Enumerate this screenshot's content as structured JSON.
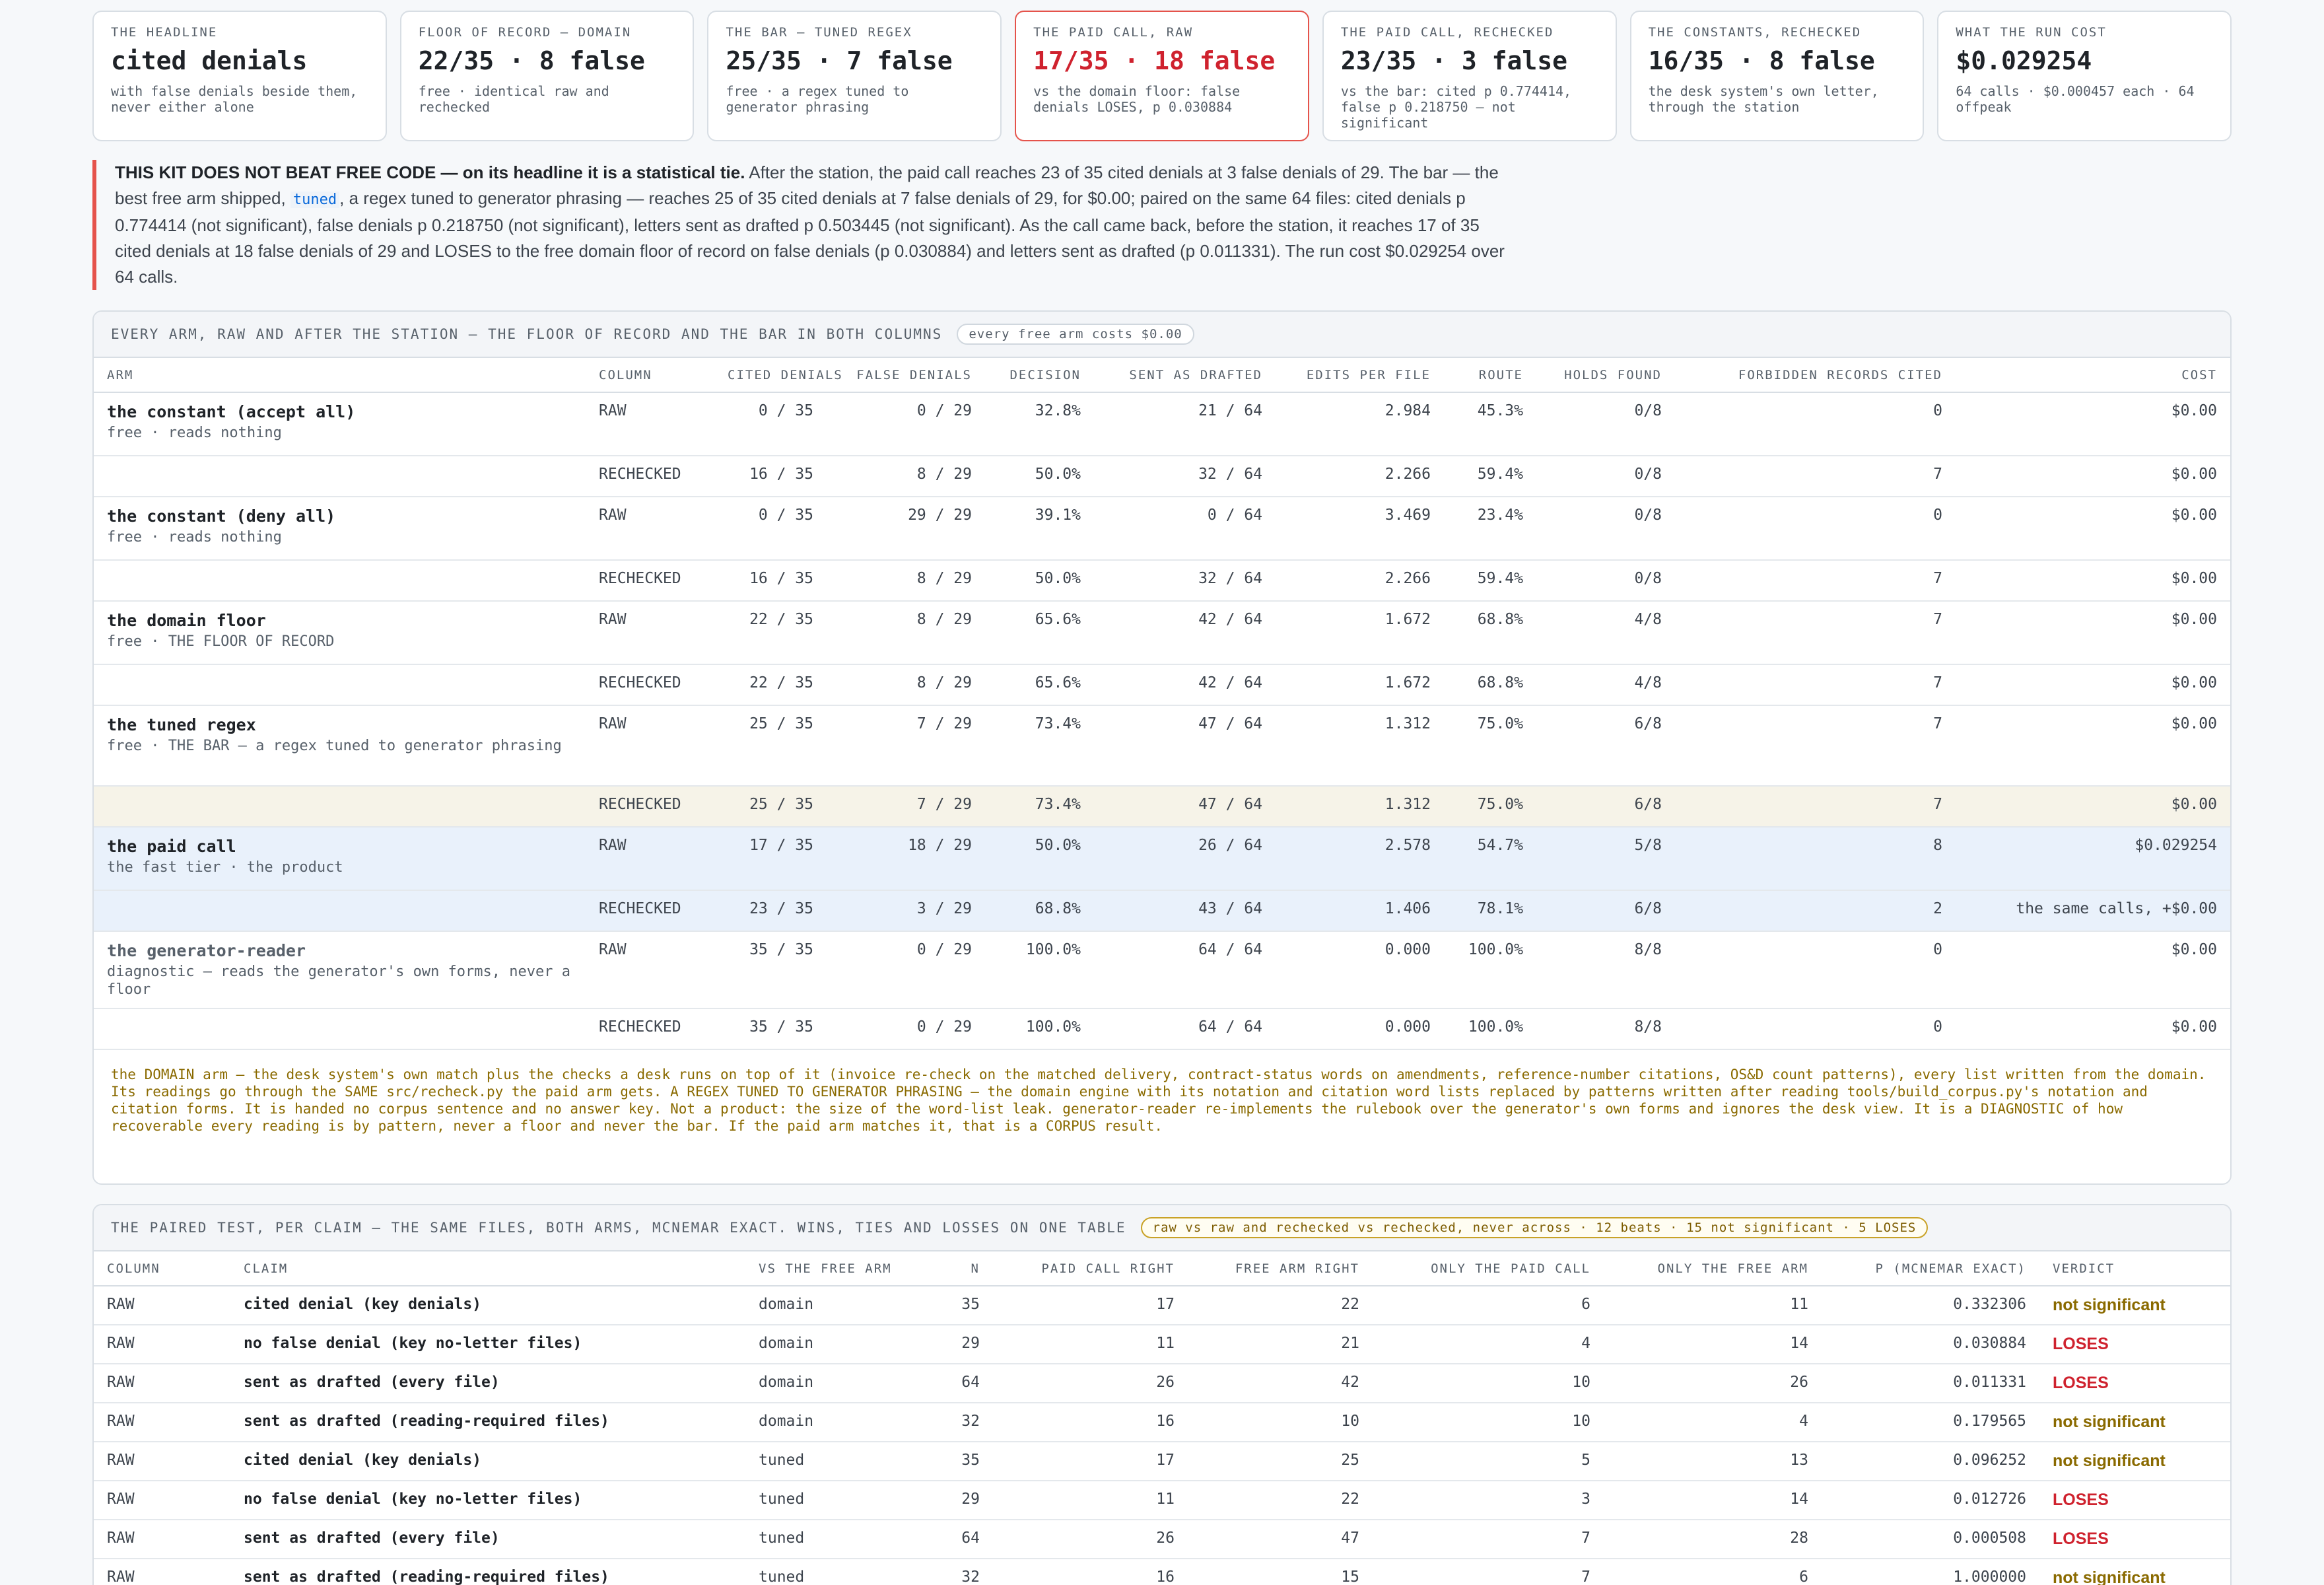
{
  "cards": [
    {
      "label": "THE HEADLINE",
      "value": "cited denials",
      "note": "with false denials beside them, never either alone"
    },
    {
      "label": "FLOOR OF RECORD — DOMAIN",
      "value": "22/35 · 8 false",
      "note": "free · identical raw and rechecked"
    },
    {
      "label": "THE BAR — TUNED REGEX",
      "value": "25/35 · 7 false",
      "note": "free · a regex tuned to generator phrasing"
    },
    {
      "label": "THE PAID CALL, RAW",
      "value": "17/35 · 18 false",
      "note": "vs the domain floor: false denials LOSES, p 0.030884"
    },
    {
      "label": "THE PAID CALL, RECHECKED",
      "value": "23/35 · 3 false",
      "note": "vs the bar: cited p 0.774414, false p 0.218750 — not significant"
    },
    {
      "label": "THE CONSTANTS, RECHECKED",
      "value": "16/35 · 8 false",
      "note": "the desk system's own letter, through the station"
    },
    {
      "label": "WHAT THE RUN COST",
      "value": "$0.029254",
      "note": "64 calls · $0.000457 each · 64 offpeak"
    }
  ],
  "verdict": {
    "lead": "THIS KIT DOES NOT BEAT FREE CODE — on its headline it is a statistical tie.",
    "part1": " After the station, the paid call reaches 23 of 35 cited denials at 3 false denials of 29. The bar — the best free arm shipped, ",
    "code": "tuned",
    "part2": ", a regex tuned to generator phrasing — reaches 25 of 35 cited denials at 7 false denials of 29, for $0.00; paired on the same 64 files: cited denials p 0.774414 (not significant), false denials p 0.218750 (not significant), letters sent as drafted p 0.503445 (not significant). As the call came back, before the station, it reaches 17 of 35 cited denials at 18 false denials of 29 and LOSES to the free domain floor of record on false denials (p 0.030884) and letters sent as drafted (p 0.011331). The run cost $0.029254 over 64 calls."
  },
  "arms_panel": {
    "title": "EVERY ARM, RAW AND AFTER THE STATION — THE FLOOR OF RECORD AND THE BAR IN BOTH COLUMNS",
    "pill": "every free arm costs $0.00",
    "headers": [
      "ARM",
      "COLUMN",
      "CITED DENIALS",
      "FALSE DENIALS",
      "DECISION",
      "SENT AS DRAFTED",
      "EDITS PER FILE",
      "ROUTE",
      "HOLDS FOUND",
      "FORBIDDEN RECORDS CITED",
      "COST"
    ],
    "arms": [
      {
        "name": "the constant (accept all)",
        "sub": "free · reads nothing",
        "style": "",
        "raw": [
          "RAW",
          "0 / 35",
          "0 / 29",
          "32.8%",
          "21 / 64",
          "2.984",
          "45.3%",
          "0/8",
          "0",
          "$0.00"
        ],
        "rechecked": [
          "RECHECKED",
          "16 / 35",
          "8 / 29",
          "50.0%",
          "32 / 64",
          "2.266",
          "59.4%",
          "0/8",
          "7",
          "$0.00"
        ]
      },
      {
        "name": "the constant (deny all)",
        "sub": "free · reads nothing",
        "style": "",
        "raw": [
          "RAW",
          "0 / 35",
          "29 / 29",
          "39.1%",
          "0 / 64",
          "3.469",
          "23.4%",
          "0/8",
          "0",
          "$0.00"
        ],
        "rechecked": [
          "RECHECKED",
          "16 / 35",
          "8 / 29",
          "50.0%",
          "32 / 64",
          "2.266",
          "59.4%",
          "0/8",
          "7",
          "$0.00"
        ]
      },
      {
        "name": "the domain floor",
        "sub": "free · THE FLOOR OF RECORD",
        "style": "",
        "raw": [
          "RAW",
          "22 / 35",
          "8 / 29",
          "65.6%",
          "42 / 64",
          "1.672",
          "68.8%",
          "4/8",
          "7",
          "$0.00"
        ],
        "rechecked": [
          "RECHECKED",
          "22 / 35",
          "8 / 29",
          "65.6%",
          "42 / 64",
          "1.672",
          "68.8%",
          "4/8",
          "7",
          "$0.00"
        ]
      },
      {
        "name": "the tuned regex",
        "sub": "free · THE BAR — a regex tuned to generator phrasing",
        "style": "bar",
        "raw": [
          "RAW",
          "25 / 35",
          "7 / 29",
          "73.4%",
          "47 / 64",
          "1.312",
          "75.0%",
          "6/8",
          "7",
          "$0.00"
        ],
        "rechecked": [
          "RECHECKED",
          "25 / 35",
          "7 / 29",
          "73.4%",
          "47 / 64",
          "1.312",
          "75.0%",
          "6/8",
          "7",
          "$0.00"
        ]
      },
      {
        "name": "the paid call",
        "sub": "the fast tier · the product",
        "style": "paid",
        "raw": [
          "RAW",
          "17 / 35",
          "18 / 29",
          "50.0%",
          "26 / 64",
          "2.578",
          "54.7%",
          "5/8",
          "8",
          "$0.029254"
        ],
        "rechecked": [
          "RECHECKED",
          "23 / 35",
          "3 / 29",
          "68.8%",
          "43 / 64",
          "1.406",
          "78.1%",
          "6/8",
          "2",
          "the same calls, +$0.00"
        ]
      },
      {
        "name": "the generator-reader",
        "sub": "diagnostic — reads the generator's own forms, never a floor",
        "style": "diag",
        "raw": [
          "RAW",
          "35 / 35",
          "0 / 29",
          "100.0%",
          "64 / 64",
          "0.000",
          "100.0%",
          "8/8",
          "0",
          "$0.00"
        ],
        "rechecked": [
          "RECHECKED",
          "35 / 35",
          "0 / 29",
          "100.0%",
          "64 / 64",
          "0.000",
          "100.0%",
          "8/8",
          "0",
          "$0.00"
        ]
      }
    ],
    "footnote": "the DOMAIN arm — the desk system's own match plus the checks a desk runs on top of it (invoice re-check on the matched delivery, contract-status words on amendments, reference-number citations, OS&D count patterns), every list written from the domain. Its readings go through the SAME src/recheck.py the paid arm gets. A REGEX TUNED TO GENERATOR PHRASING — the domain engine with its notation and citation word lists replaced by patterns written after reading tools/build_corpus.py's notation and citation forms. It is handed no corpus sentence and no answer key. Not a product: the size of the word-list leak. generator-reader re-implements the rulebook over the generator's own forms and ignores the desk view. It is a DIAGNOSTIC of how recoverable every reading is by pattern, never a floor and never the bar. If the paid arm matches it, that is a CORPUS result."
  },
  "paired_panel": {
    "title": "THE PAIRED TEST, PER CLAIM — THE SAME FILES, BOTH ARMS, MCNEMAR EXACT. WINS, TIES AND LOSSES ON ONE TABLE",
    "pill": "raw vs raw and rechecked vs rechecked, never across · 12 beats · 15 not significant · 5 LOSES",
    "headers": [
      "COLUMN",
      "CLAIM",
      "VS THE FREE ARM",
      "N",
      "PAID CALL RIGHT",
      "FREE ARM RIGHT",
      "ONLY THE PAID CALL",
      "ONLY THE FREE ARM",
      "P (MCNEMAR EXACT)",
      "VERDICT"
    ],
    "rows": [
      [
        "RAW",
        "cited denial (key denials)",
        "domain",
        "35",
        "17",
        "22",
        "6",
        "11",
        "0.332306",
        "not significant"
      ],
      [
        "RAW",
        "no false denial (key no-letter files)",
        "domain",
        "29",
        "11",
        "21",
        "4",
        "14",
        "0.030884",
        "LOSES"
      ],
      [
        "RAW",
        "sent as drafted (every file)",
        "domain",
        "64",
        "26",
        "42",
        "10",
        "26",
        "0.011331",
        "LOSES"
      ],
      [
        "RAW",
        "sent as drafted (reading-required files)",
        "domain",
        "32",
        "16",
        "10",
        "10",
        "4",
        "0.179565",
        "not significant"
      ],
      [
        "RAW",
        "cited denial (key denials)",
        "tuned",
        "35",
        "17",
        "25",
        "5",
        "13",
        "0.096252",
        "not significant"
      ],
      [
        "RAW",
        "no false denial (key no-letter files)",
        "tuned",
        "29",
        "11",
        "22",
        "3",
        "14",
        "0.012726",
        "LOSES"
      ],
      [
        "RAW",
        "sent as drafted (every file)",
        "tuned",
        "64",
        "26",
        "47",
        "7",
        "28",
        "0.000508",
        "LOSES"
      ],
      [
        "RAW",
        "sent as drafted (reading-required files)",
        "tuned",
        "32",
        "16",
        "15",
        "7",
        "6",
        "1.000000",
        "not significant"
      ]
    ]
  }
}
